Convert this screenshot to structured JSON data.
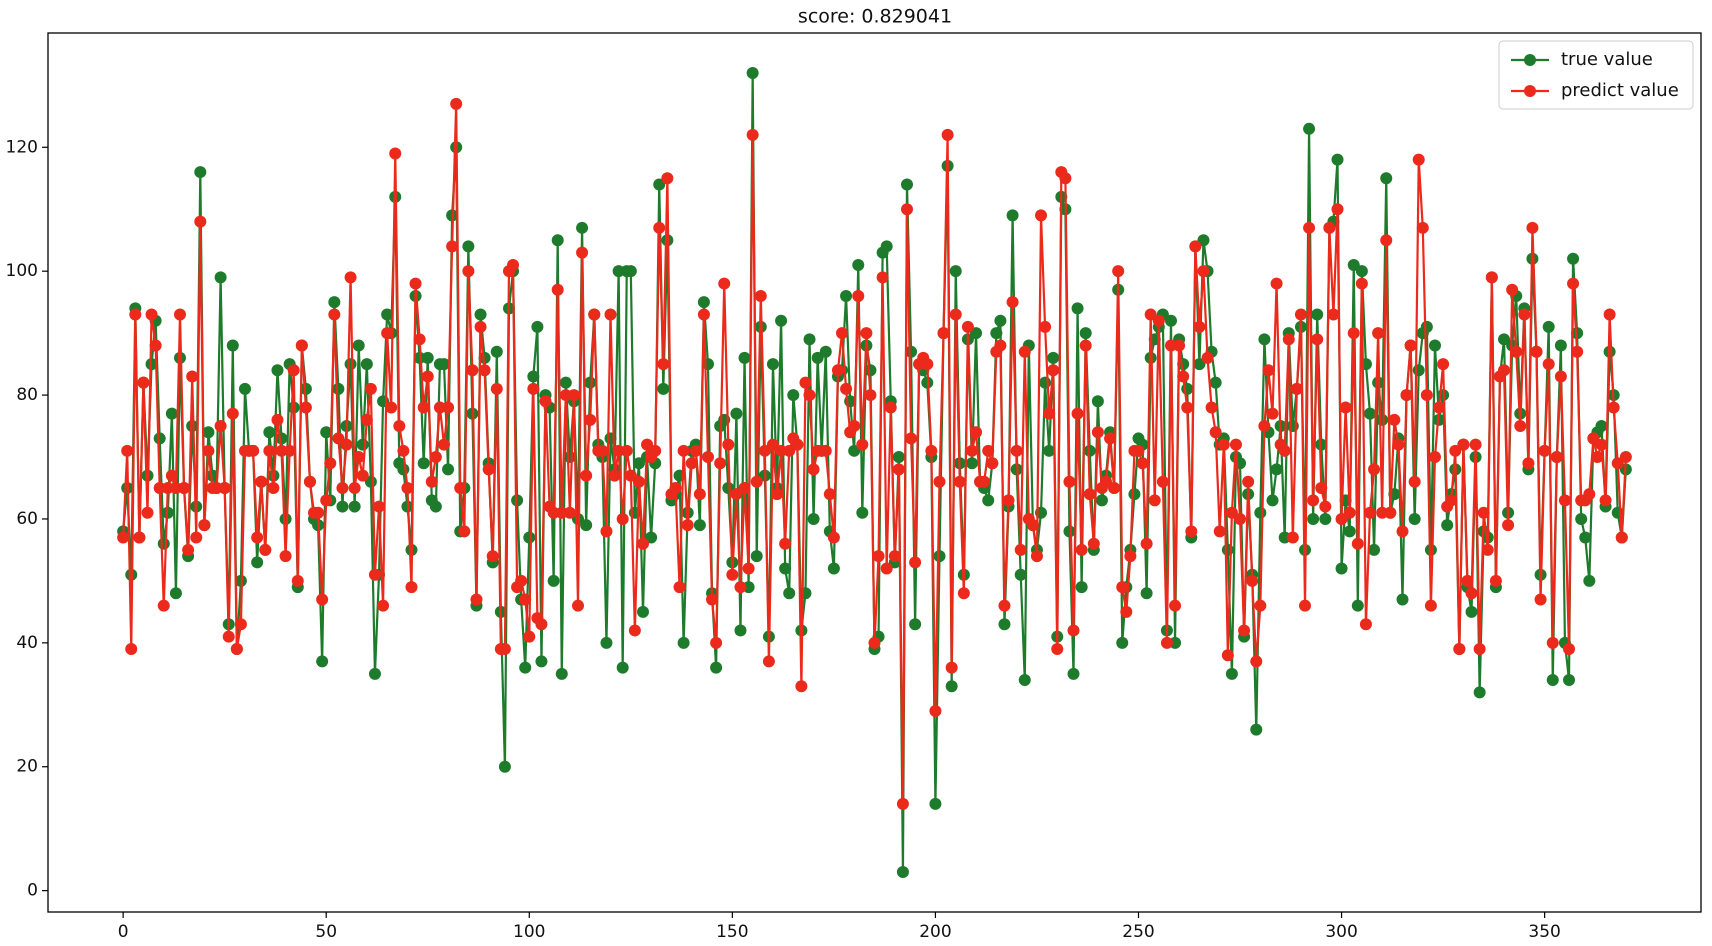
{
  "chart_data": {
    "type": "line",
    "title": "score: 0.829041",
    "x": [
      0,
      1,
      2,
      3,
      4,
      5,
      6,
      7,
      8,
      9,
      10,
      11,
      12,
      13,
      14,
      15,
      16,
      17,
      18,
      19,
      20,
      21,
      22,
      23,
      24,
      25,
      26,
      27,
      28,
      29,
      30,
      31,
      32,
      33,
      34,
      35,
      36,
      37,
      38,
      39,
      40,
      41,
      42,
      43,
      44,
      45,
      46,
      47,
      48,
      49,
      50,
      51,
      52,
      53,
      54,
      55,
      56,
      57,
      58,
      59,
      60,
      61,
      62,
      63,
      64,
      65,
      66,
      67,
      68,
      69,
      70,
      71,
      72,
      73,
      74,
      75,
      76,
      77,
      78,
      79,
      80,
      81,
      82,
      83,
      84,
      85,
      86,
      87,
      88,
      89,
      90,
      91,
      92,
      93,
      94,
      95,
      96,
      97,
      98,
      99,
      100,
      101,
      102,
      103,
      104,
      105,
      106,
      107,
      108,
      109,
      110,
      111,
      112,
      113,
      114,
      115,
      116,
      117,
      118,
      119,
      120,
      121,
      122,
      123,
      124,
      125,
      126,
      127,
      128,
      129,
      130,
      131,
      132,
      133,
      134,
      135,
      136,
      137,
      138,
      139,
      140,
      141,
      142,
      143,
      144,
      145,
      146,
      147,
      148,
      149,
      150,
      151,
      152,
      153,
      154,
      155,
      156,
      157,
      158,
      159,
      160,
      161,
      162,
      163,
      164,
      165,
      166,
      167,
      168,
      169,
      170,
      171,
      172,
      173,
      174,
      175,
      176,
      177,
      178,
      179,
      180,
      181,
      182,
      183,
      184,
      185,
      186,
      187,
      188,
      189,
      190,
      191,
      192,
      193,
      194,
      195,
      196,
      197,
      198,
      199,
      200,
      201,
      202,
      203,
      204,
      205,
      206,
      207,
      208,
      209,
      210,
      211,
      212,
      213,
      214,
      215,
      216,
      217,
      218,
      219,
      220,
      221,
      222,
      223,
      224,
      225,
      226,
      227,
      228,
      229,
      230,
      231,
      232,
      233,
      234,
      235,
      236,
      237,
      238,
      239,
      240,
      241,
      242,
      243,
      244,
      245,
      246,
      247,
      248,
      249,
      250,
      251,
      252,
      253,
      254,
      255,
      256,
      257,
      258,
      259,
      260,
      261,
      262,
      263,
      264,
      265,
      266,
      267,
      268,
      269,
      270,
      271,
      272,
      273,
      274,
      275,
      276,
      277,
      278,
      279,
      280,
      281,
      282,
      283,
      284,
      285,
      286,
      287,
      288,
      289,
      290,
      291,
      292,
      293,
      294,
      295,
      296,
      297,
      298,
      299,
      300,
      301,
      302,
      303,
      304,
      305,
      306,
      307,
      308,
      309,
      310,
      311,
      312,
      313,
      314,
      315,
      316,
      317,
      318,
      319,
      320,
      321,
      322,
      323,
      324,
      325,
      326,
      327,
      328,
      329,
      330,
      331,
      332,
      333,
      334,
      335,
      336,
      337,
      338,
      339,
      340,
      341,
      342,
      343,
      344,
      345,
      346,
      347,
      348,
      349,
      350,
      351,
      352,
      353,
      354,
      355,
      356,
      357,
      358,
      359,
      360,
      361,
      362,
      363,
      364,
      365,
      366,
      367,
      368,
      369,
      370
    ],
    "series": [
      {
        "name": "true value",
        "color": "#1e7b2c",
        "values": [
          58,
          65,
          51,
          94,
          57,
          82,
          67,
          85,
          92,
          73,
          56,
          61,
          77,
          48,
          86,
          65,
          54,
          75,
          62,
          116,
          59,
          74,
          67,
          65,
          99,
          65,
          43,
          88,
          39,
          50,
          81,
          71,
          71,
          53,
          66,
          55,
          74,
          67,
          84,
          73,
          60,
          85,
          78,
          49,
          88,
          81,
          66,
          60,
          59,
          37,
          74,
          63,
          95,
          81,
          62,
          75,
          85,
          62,
          88,
          72,
          85,
          66,
          35,
          51,
          79,
          93,
          90,
          112,
          69,
          68,
          62,
          55,
          96,
          86,
          69,
          86,
          63,
          62,
          85,
          85,
          68,
          109,
          120,
          58,
          65,
          104,
          77,
          46,
          93,
          86,
          69,
          53,
          87,
          45,
          20,
          94,
          100,
          63,
          47,
          36,
          57,
          83,
          91,
          37,
          80,
          78,
          50,
          105,
          35,
          82,
          70,
          79,
          60,
          107,
          59,
          82,
          93,
          72,
          70,
          40,
          73,
          68,
          100,
          36,
          100,
          100,
          61,
          69,
          45,
          70,
          57,
          69,
          114,
          81,
          105,
          63,
          64,
          67,
          40,
          61,
          71,
          72,
          59,
          95,
          85,
          48,
          36,
          75,
          76,
          65,
          53,
          77,
          42,
          86,
          49,
          132,
          54,
          91,
          67,
          41,
          85,
          65,
          92,
          52,
          48,
          80,
          72,
          42,
          48,
          89,
          60,
          86,
          71,
          87,
          58,
          52,
          83,
          84,
          96,
          79,
          71,
          101,
          61,
          88,
          84,
          39,
          41,
          103,
          104,
          79,
          53,
          70,
          3,
          114,
          87,
          43,
          85,
          84,
          82,
          70,
          14,
          54,
          90,
          117,
          33,
          100,
          69,
          51,
          89,
          69,
          90,
          66,
          65,
          63,
          69,
          90,
          92,
          43,
          62,
          109,
          68,
          51,
          34,
          88,
          59,
          55,
          61,
          82,
          71,
          86,
          41,
          112,
          110,
          58,
          35,
          94,
          49,
          90,
          71,
          55,
          79,
          63,
          67,
          74,
          65,
          97,
          40,
          49,
          55,
          64,
          73,
          72,
          48,
          86,
          89,
          91,
          93,
          42,
          92,
          40,
          89,
          85,
          81,
          57,
          104,
          85,
          105,
          100,
          87,
          82,
          72,
          73,
          55,
          35,
          70,
          69,
          41,
          64,
          51,
          26,
          61,
          89,
          74,
          63,
          68,
          75,
          57,
          90,
          75,
          81,
          91,
          55,
          123,
          60,
          93,
          72,
          60,
          107,
          108,
          118,
          52,
          63,
          58,
          101,
          46,
          100,
          85,
          77,
          55,
          82,
          76,
          115,
          61,
          64,
          73,
          47,
          80,
          88,
          60,
          84,
          90,
          91,
          55,
          88,
          76,
          80,
          59,
          64,
          68,
          39,
          72,
          49,
          45,
          70,
          32,
          58,
          57,
          99,
          49,
          83,
          89,
          61,
          88,
          96,
          77,
          94,
          68,
          102,
          87,
          51,
          71,
          91,
          34,
          70,
          88,
          40,
          34,
          102,
          90,
          60,
          57,
          50,
          73,
          74,
          75,
          62,
          87,
          80,
          61,
          57,
          68
        ]
      },
      {
        "name": "predict value",
        "color": "#ec2a1c",
        "values": [
          57,
          71,
          39,
          93,
          57,
          82,
          61,
          93,
          88,
          65,
          46,
          65,
          67,
          65,
          93,
          65,
          55,
          83,
          57,
          108,
          59,
          71,
          65,
          65,
          75,
          65,
          41,
          77,
          39,
          43,
          71,
          71,
          71,
          57,
          66,
          55,
          71,
          65,
          76,
          71,
          54,
          71,
          84,
          50,
          88,
          78,
          66,
          61,
          61,
          47,
          63,
          69,
          93,
          73,
          65,
          72,
          99,
          65,
          70,
          67,
          76,
          81,
          51,
          62,
          46,
          90,
          78,
          119,
          75,
          71,
          65,
          49,
          98,
          89,
          78,
          83,
          66,
          70,
          78,
          72,
          78,
          104,
          127,
          65,
          58,
          100,
          84,
          47,
          91,
          84,
          68,
          54,
          81,
          39,
          39,
          100,
          101,
          49,
          50,
          47,
          41,
          81,
          44,
          43,
          79,
          62,
          61,
          97,
          61,
          80,
          61,
          80,
          46,
          103,
          67,
          76,
          93,
          71,
          71,
          58,
          93,
          67,
          71,
          60,
          71,
          67,
          42,
          66,
          56,
          72,
          70,
          71,
          107,
          85,
          115,
          64,
          65,
          49,
          71,
          59,
          69,
          71,
          64,
          93,
          70,
          47,
          40,
          69,
          98,
          72,
          51,
          64,
          49,
          65,
          52,
          122,
          66,
          96,
          71,
          37,
          72,
          64,
          71,
          56,
          71,
          73,
          72,
          33,
          82,
          80,
          68,
          71,
          71,
          71,
          64,
          57,
          84,
          90,
          81,
          74,
          75,
          96,
          72,
          90,
          80,
          40,
          54,
          99,
          52,
          78,
          54,
          68,
          14,
          110,
          73,
          53,
          85,
          86,
          85,
          71,
          29,
          66,
          90,
          122,
          36,
          93,
          66,
          48,
          91,
          71,
          74,
          66,
          66,
          71,
          69,
          87,
          88,
          46,
          63,
          95,
          71,
          55,
          87,
          60,
          59,
          54,
          109,
          91,
          77,
          84,
          39,
          116,
          115,
          66,
          42,
          77,
          55,
          88,
          64,
          56,
          74,
          65,
          66,
          73,
          65,
          100,
          49,
          45,
          54,
          71,
          71,
          69,
          56,
          93,
          63,
          92,
          66,
          40,
          88,
          46,
          88,
          83,
          78,
          58,
          104,
          91,
          100,
          86,
          78,
          74,
          58,
          72,
          38,
          61,
          72,
          60,
          42,
          66,
          50,
          37,
          46,
          75,
          84,
          77,
          98,
          72,
          71,
          89,
          57,
          81,
          93,
          46,
          107,
          63,
          89,
          65,
          62,
          107,
          93,
          110,
          60,
          78,
          61,
          90,
          56,
          98,
          43,
          61,
          68,
          90,
          61,
          105,
          61,
          76,
          72,
          58,
          80,
          88,
          66,
          118,
          107,
          80,
          46,
          70,
          78,
          85,
          62,
          63,
          71,
          39,
          72,
          50,
          48,
          72,
          39,
          61,
          55,
          99,
          50,
          83,
          84,
          59,
          97,
          87,
          75,
          93,
          69,
          107,
          87,
          47,
          71,
          85,
          40,
          70,
          83,
          63,
          39,
          98,
          87,
          63,
          63,
          64,
          73,
          70,
          72,
          63,
          93,
          78,
          69,
          57,
          70
        ]
      }
    ],
    "xlim": [
      -18.5,
      388.5
    ],
    "xticks": [
      0,
      50,
      100,
      150,
      200,
      250,
      300,
      350
    ],
    "ylim": [
      -3.45,
      138.45
    ],
    "yticks": [
      0,
      20,
      40,
      60,
      80,
      100,
      120
    ],
    "grid": false,
    "legend": "upper right",
    "markers": true
  }
}
